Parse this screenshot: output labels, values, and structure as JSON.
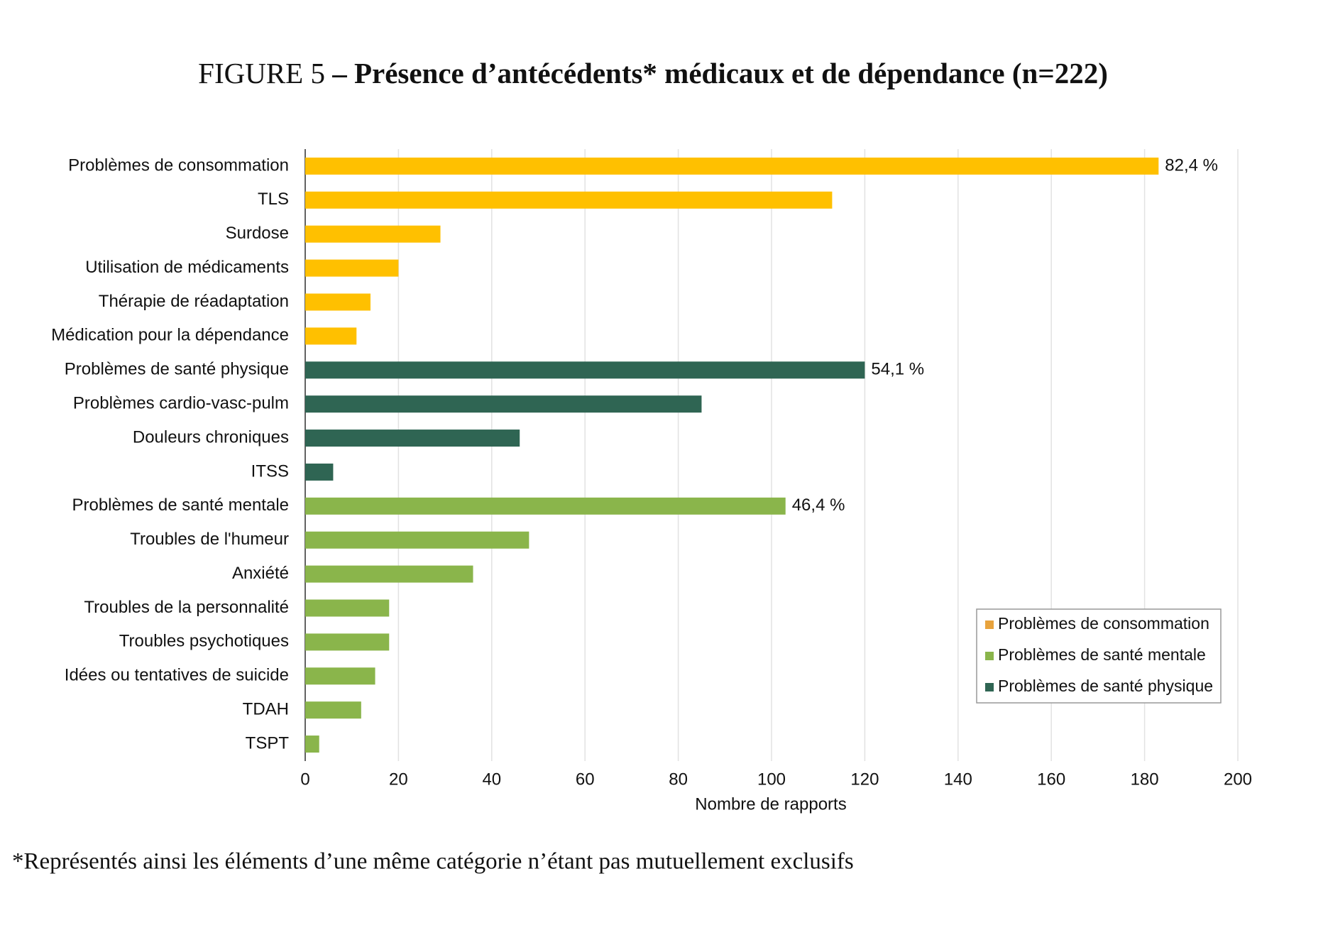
{
  "chart_data": {
    "type": "hbar",
    "title_prefix": "FIGURE 5",
    "title": "– Présence d’antécédents* médicaux et de dépendance (n=222)",
    "footnote": "*Représentés ainsi les éléments d’une même catégorie n’étant pas mutuellement exclusifs",
    "x_label": "Nombre de rapports",
    "categories": [
      "Problèmes de consommation",
      "TLS",
      "Surdose",
      "Utilisation de médicaments",
      "Thérapie de réadaptation",
      "Médication pour la dépendance",
      "Problèmes de santé physique",
      "Problèmes cardio-vasc-pulm",
      "Douleurs chroniques",
      "ITSS",
      "Problèmes de santé mentale",
      "Troubles de l'humeur",
      "Anxiété",
      "Troubles de la personnalité",
      "Troubles psychotiques",
      "Idées ou tentatives de suicide",
      "TDAH",
      "TSPT"
    ],
    "series": [
      {
        "name": "Problèmes de consommation",
        "color": "#ffc000",
        "legend_color": "#e8a33d",
        "values": [
          183,
          113,
          29,
          20,
          14,
          11,
          null,
          null,
          null,
          null,
          null,
          null,
          null,
          null,
          null,
          null,
          null,
          null
        ]
      },
      {
        "name": "Problèmes de santé mentale",
        "color": "#8ab54b",
        "legend_color": "#8ab54b",
        "values": [
          null,
          null,
          null,
          null,
          null,
          null,
          null,
          null,
          null,
          null,
          103,
          48,
          36,
          18,
          18,
          15,
          12,
          3
        ]
      },
      {
        "name": "Problèmes de santé physique",
        "color": "#2f6553",
        "legend_color": "#2f6553",
        "values": [
          null,
          null,
          null,
          null,
          null,
          null,
          120,
          85,
          46,
          6,
          null,
          null,
          null,
          null,
          null,
          null,
          null,
          null
        ]
      }
    ],
    "annotations": [
      "82,4 %",
      "46,4 %",
      "54,1 %"
    ],
    "xlim": [
      0,
      200
    ],
    "xticks": [
      0,
      20,
      40,
      60,
      80,
      100,
      120,
      140,
      160,
      180,
      200
    ],
    "grid": true,
    "legend": "lower right"
  }
}
